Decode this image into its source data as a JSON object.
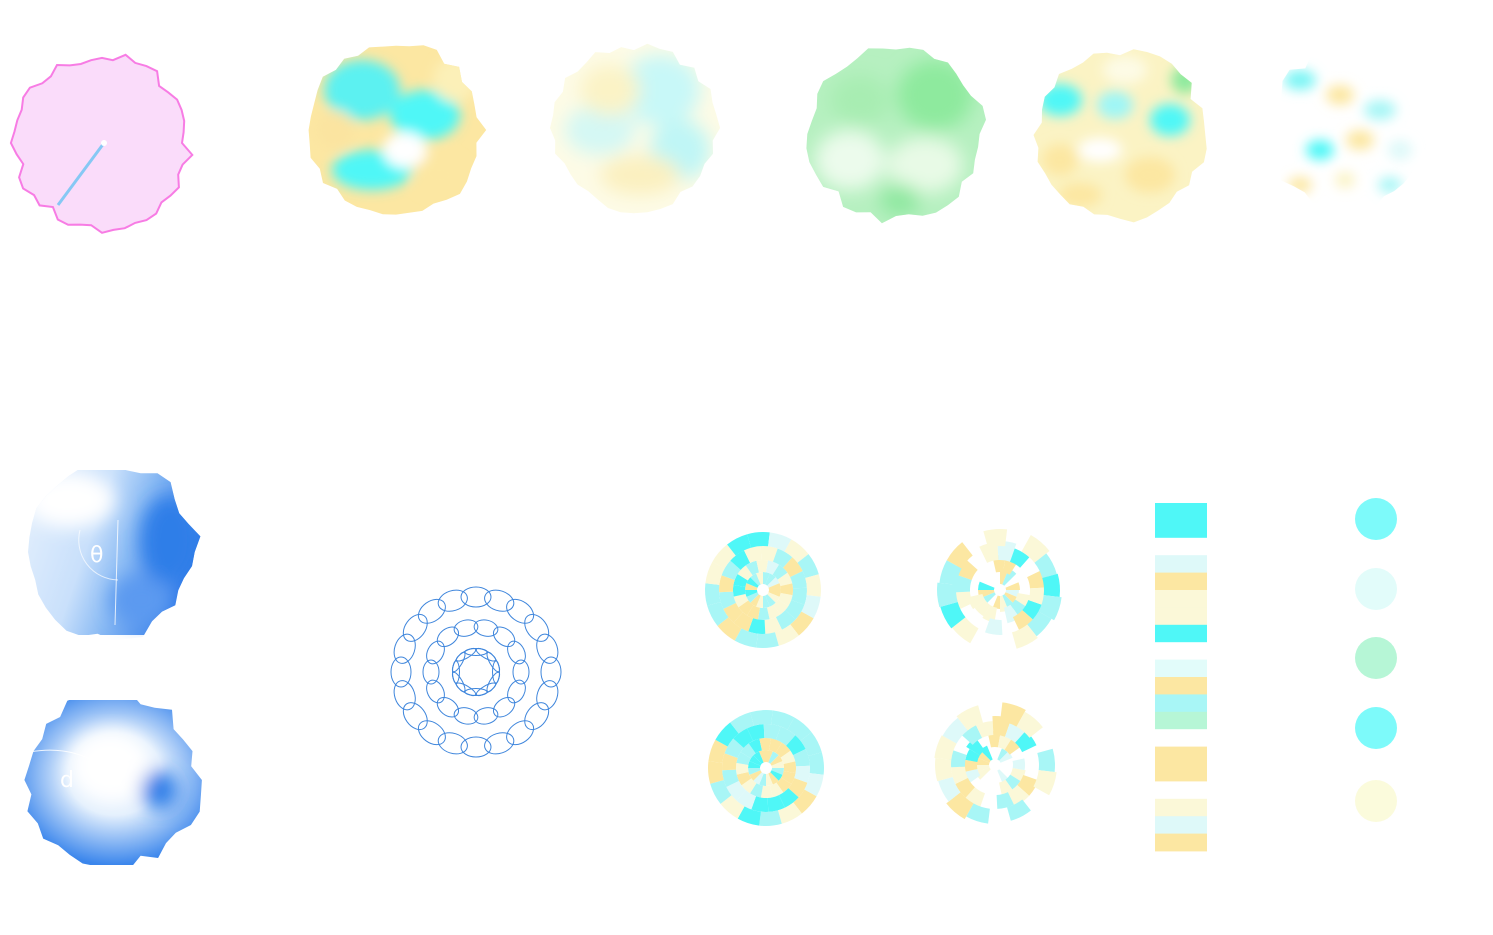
{
  "labels": {
    "theta": "θ",
    "d": "d"
  },
  "palette": {
    "cyan": "#4ff7f7",
    "light_cyan": "#a8f6f6",
    "pale_cyan": "#def9f9",
    "yellow": "#fce7a2",
    "pale_yellow": "#fbf8d8",
    "mint": "#b6f6d6",
    "green": "#8eea9e",
    "pink_fill": "#fadcfa",
    "pink_stroke": "#f77ce4",
    "blue": "#3b86ec",
    "ring_stroke": "#3f86dc"
  },
  "stripe_colors": [
    "#4ff7f7",
    "#4ff7f7",
    "#ffffff",
    "#def9f9",
    "#fce7a2",
    "#fbf8d8",
    "#fbf8d8",
    "#4ff7f7",
    "#ffffff",
    "#e2fcfa",
    "#fce7a2",
    "#a8f6f6",
    "#b6f6d6",
    "#ffffff",
    "#fce7a2",
    "#fce7a2",
    "#ffffff",
    "#fbf8d8",
    "#def9f9",
    "#fce7a2"
  ],
  "dot_colors": [
    "#7dfafa",
    "#e2fcfa",
    "#b6f6d6",
    "#7dfafa",
    "#fbfbdc"
  ]
}
